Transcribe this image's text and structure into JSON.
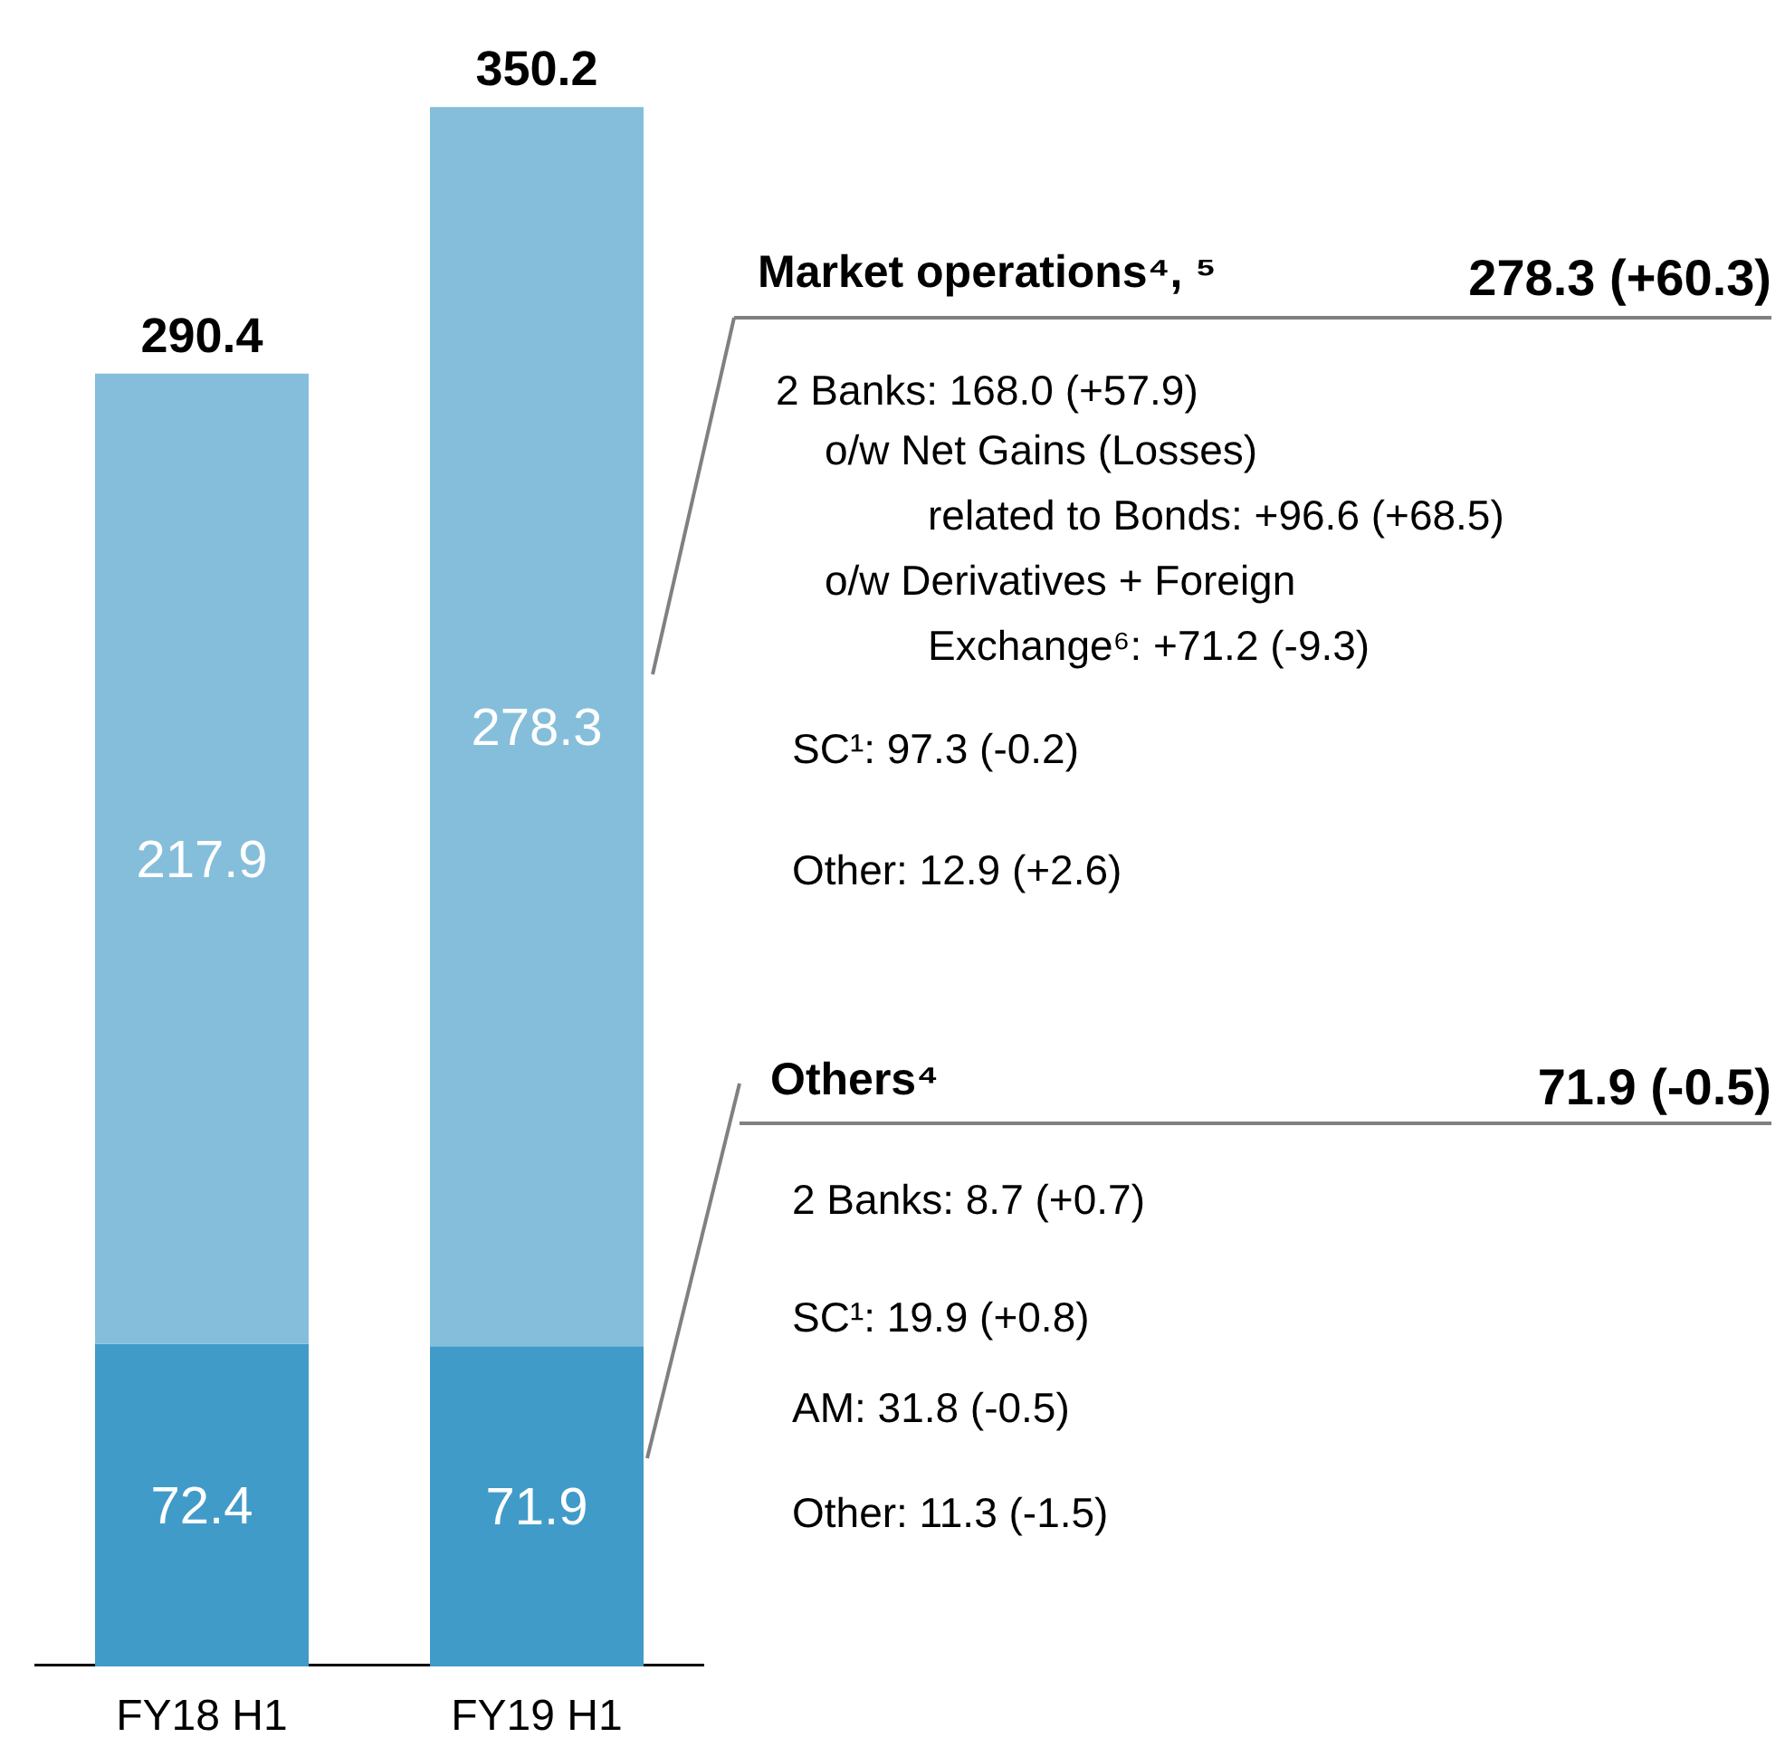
{
  "chart_data": {
    "type": "bar",
    "stacked": true,
    "data_labels": true,
    "categories": [
      "FY18 H1",
      "FY19 H1"
    ],
    "series": [
      {
        "name": "Others⁴",
        "color": "#419bc9",
        "values": [
          72.4,
          71.9
        ]
      },
      {
        "name": "Market operations⁴, ⁵",
        "color": "#85bedb",
        "values": [
          217.9,
          278.3
        ]
      }
    ],
    "totals": [
      "290.4",
      "350.2"
    ],
    "annotations": [
      "278.3 (+60.3)",
      "2 Banks: 168.0 (+57.9)",
      "o/w Net Gains (Losses)",
      "related to Bonds: +96.6 (+68.5)",
      "o/w Derivatives + Foreign",
      "Exchange⁶: +71.2 (-9.3)",
      "SC¹: 97.3 (-0.2)",
      "Other: 12.9 (+2.6)",
      "71.9 (-0.5)",
      "2 Banks: 8.7 (+0.7)",
      "SC¹: 19.9 (+0.8)",
      "AM: 31.8 (-0.5)",
      "Other: 11.3 (-1.5)"
    ]
  }
}
